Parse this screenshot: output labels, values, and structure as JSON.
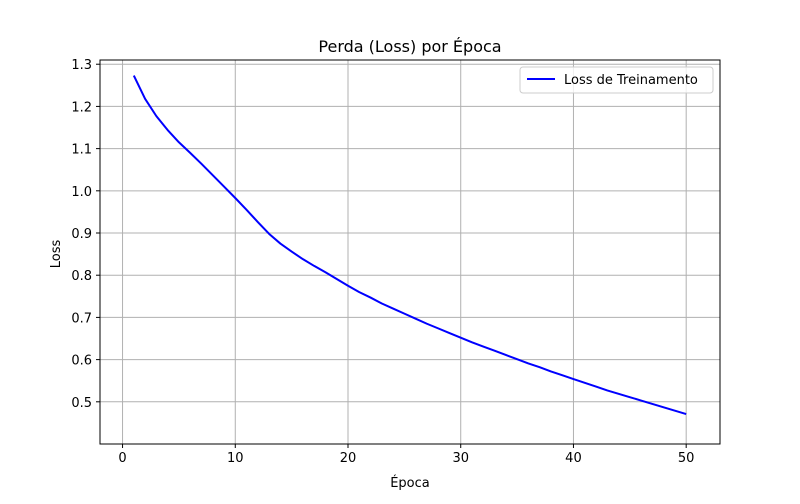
{
  "chart_data": {
    "type": "line",
    "title": "Perda (Loss) por Época",
    "xlabel": "Época",
    "ylabel": "Loss",
    "xlim": [
      -2,
      53
    ],
    "ylim": [
      0.4,
      1.31
    ],
    "xticks": [
      0,
      10,
      20,
      30,
      40,
      50
    ],
    "yticks": [
      0.5,
      0.6,
      0.7,
      0.8,
      0.9,
      1.0,
      1.1,
      1.2,
      1.3
    ],
    "grid": true,
    "legend": "top-right",
    "series": [
      {
        "name": "Loss de Treinamento",
        "color": "#0000ff",
        "x": [
          1,
          2,
          3,
          4,
          5,
          6,
          7,
          8,
          9,
          10,
          11,
          12,
          13,
          14,
          15,
          16,
          17,
          18,
          19,
          20,
          21,
          22,
          23,
          24,
          25,
          26,
          27,
          28,
          29,
          30,
          31,
          32,
          33,
          34,
          35,
          36,
          37,
          38,
          39,
          40,
          41,
          42,
          43,
          44,
          45,
          46,
          47,
          48,
          49,
          50
        ],
        "y": [
          1.273,
          1.218,
          1.177,
          1.144,
          1.115,
          1.09,
          1.064,
          1.037,
          1.01,
          0.983,
          0.955,
          0.926,
          0.898,
          0.875,
          0.856,
          0.838,
          0.822,
          0.807,
          0.791,
          0.775,
          0.76,
          0.747,
          0.733,
          0.721,
          0.709,
          0.697,
          0.685,
          0.674,
          0.663,
          0.652,
          0.641,
          0.631,
          0.621,
          0.611,
          0.601,
          0.591,
          0.582,
          0.572,
          0.563,
          0.554,
          0.545,
          0.536,
          0.527,
          0.519,
          0.511,
          0.503,
          0.495,
          0.487,
          0.479,
          0.471
        ]
      }
    ]
  }
}
